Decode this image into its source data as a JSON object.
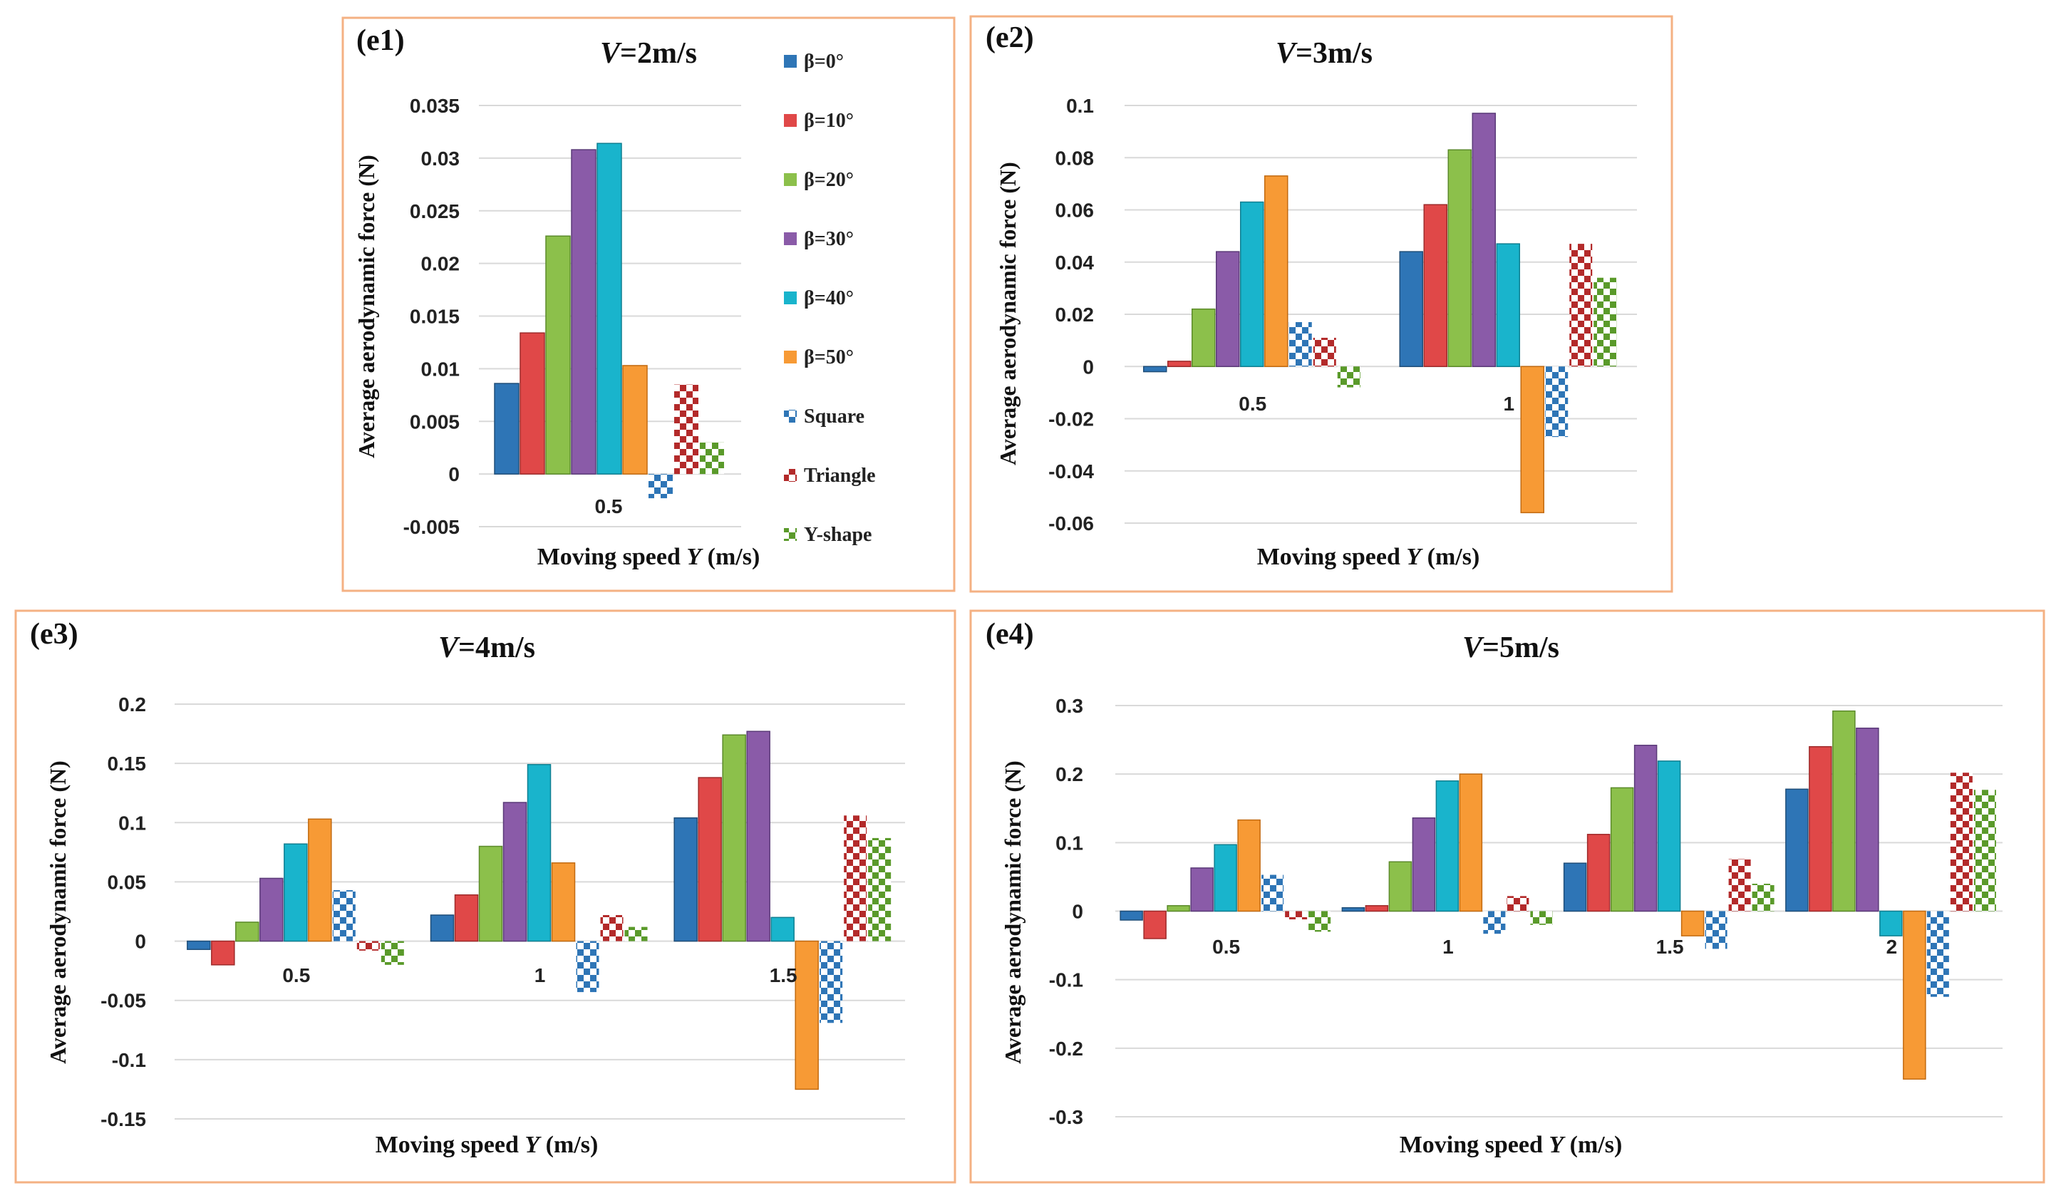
{
  "colors": {
    "b0": "#2e75b6",
    "b10": "#e04848",
    "b20": "#8cc04b",
    "b30": "#8a5ba8",
    "b40": "#19b4cc",
    "b50": "#f79a35",
    "square": "#2e75b6",
    "triangle": "#b32a2a",
    "yshape": "#5a9a2a",
    "grid": "#d9d9d9",
    "frame": "#f4b183"
  },
  "legend": {
    "items": [
      {
        "label": "β=0°",
        "key": "b0",
        "pattern": "solid"
      },
      {
        "label": "β=10°",
        "key": "b10",
        "pattern": "solid"
      },
      {
        "label": "β=20°",
        "key": "b20",
        "pattern": "solid"
      },
      {
        "label": "β=30°",
        "key": "b30",
        "pattern": "solid"
      },
      {
        "label": "β=40°",
        "key": "b40",
        "pattern": "solid"
      },
      {
        "label": "β=50°",
        "key": "b50",
        "pattern": "solid"
      },
      {
        "label": "Square",
        "key": "square",
        "pattern": "check"
      },
      {
        "label": "Triangle",
        "key": "triangle",
        "pattern": "check"
      },
      {
        "label": "Y-shape",
        "key": "yshape",
        "pattern": "check"
      }
    ]
  },
  "chart_data": [
    {
      "type": "bar",
      "panel": "(e1)",
      "title_v": "V",
      "title_rest": "=2m/s",
      "ylabel": "Average aerodynamic force (N)",
      "xlabel": "Moving speed ",
      "xlabel_var": "Y",
      "xlabel_unit": " (m/s)",
      "categories": [
        "0.5"
      ],
      "yticks": [
        "0.035",
        "0.03",
        "0.025",
        "0.02",
        "0.015",
        "0.01",
        "0.005",
        "0",
        "-0.005"
      ],
      "ylim": [
        -0.005,
        0.035
      ],
      "series": [
        {
          "name": "β=0°",
          "values": [
            0.0086
          ]
        },
        {
          "name": "β=10°",
          "values": [
            0.0134
          ]
        },
        {
          "name": "β=20°",
          "values": [
            0.0226
          ]
        },
        {
          "name": "β=30°",
          "values": [
            0.0308
          ]
        },
        {
          "name": "β=40°",
          "values": [
            0.0314
          ]
        },
        {
          "name": "β=50°",
          "values": [
            0.0103
          ]
        },
        {
          "name": "Square",
          "values": [
            -0.0023
          ]
        },
        {
          "name": "Triangle",
          "values": [
            0.0085
          ]
        },
        {
          "name": "Y-shape",
          "values": [
            0.003
          ]
        }
      ]
    },
    {
      "type": "bar",
      "panel": "(e2)",
      "title_v": "V",
      "title_rest": "=3m/s",
      "ylabel": "Average aerodynamic force (N)",
      "xlabel": "Moving speed ",
      "xlabel_var": "Y",
      "xlabel_unit": " (m/s)",
      "categories": [
        "0.5",
        "1"
      ],
      "yticks": [
        "0.1",
        "0.08",
        "0.06",
        "0.04",
        "0.02",
        "0",
        "-0.02",
        "-0.04",
        "-0.06"
      ],
      "ylim": [
        -0.06,
        0.1
      ],
      "series": [
        {
          "name": "β=0°",
          "values": [
            -0.002,
            0.044
          ]
        },
        {
          "name": "β=10°",
          "values": [
            0.002,
            0.062
          ]
        },
        {
          "name": "β=20°",
          "values": [
            0.022,
            0.083
          ]
        },
        {
          "name": "β=30°",
          "values": [
            0.044,
            0.097
          ]
        },
        {
          "name": "β=40°",
          "values": [
            0.063,
            0.047
          ]
        },
        {
          "name": "β=50°",
          "values": [
            0.073,
            -0.056
          ]
        },
        {
          "name": "Square",
          "values": [
            0.017,
            -0.027
          ]
        },
        {
          "name": "Triangle",
          "values": [
            0.011,
            0.047
          ]
        },
        {
          "name": "Y-shape",
          "values": [
            -0.008,
            0.034
          ]
        }
      ]
    },
    {
      "type": "bar",
      "panel": "(e3)",
      "title_v": "V",
      "title_rest": "=4m/s",
      "ylabel": "Average aerodynamic force (N)",
      "xlabel": "Moving speed ",
      "xlabel_var": "Y",
      "xlabel_unit": " (m/s)",
      "categories": [
        "0.5",
        "1",
        "1.5"
      ],
      "yticks": [
        "0.2",
        "0.15",
        "0.1",
        "0.05",
        "0",
        "-0.05",
        "-0.1",
        "-0.15"
      ],
      "ylim": [
        -0.15,
        0.2
      ],
      "series": [
        {
          "name": "β=0°",
          "values": [
            -0.007,
            0.022,
            0.104
          ]
        },
        {
          "name": "β=10°",
          "values": [
            -0.02,
            0.039,
            0.138
          ]
        },
        {
          "name": "β=20°",
          "values": [
            0.016,
            0.08,
            0.174
          ]
        },
        {
          "name": "β=30°",
          "values": [
            0.053,
            0.117,
            0.177
          ]
        },
        {
          "name": "β=40°",
          "values": [
            0.082,
            0.149,
            0.02
          ]
        },
        {
          "name": "β=50°",
          "values": [
            0.103,
            0.066,
            -0.125
          ]
        },
        {
          "name": "Square",
          "values": [
            0.043,
            -0.043,
            -0.069
          ]
        },
        {
          "name": "Triangle",
          "values": [
            -0.008,
            0.022,
            0.106
          ]
        },
        {
          "name": "Y-shape",
          "values": [
            -0.02,
            0.012,
            0.087
          ]
        }
      ]
    },
    {
      "type": "bar",
      "panel": "(e4)",
      "title_v": "V",
      "title_rest": "=5m/s",
      "ylabel": "Average aerodynamic force (N)",
      "xlabel": "Moving speed ",
      "xlabel_var": "Y",
      "xlabel_unit": " (m/s)",
      "categories": [
        "0.5",
        "1",
        "1.5",
        "2"
      ],
      "yticks": [
        "0.3",
        "0.2",
        "0.1",
        "0",
        "-0.1",
        "-0.2",
        "-0.3"
      ],
      "ylim": [
        -0.3,
        0.3
      ],
      "series": [
        {
          "name": "β=0°",
          "values": [
            -0.013,
            0.005,
            0.07,
            0.178
          ]
        },
        {
          "name": "β=10°",
          "values": [
            -0.04,
            0.008,
            0.112,
            0.24
          ]
        },
        {
          "name": "β=20°",
          "values": [
            0.008,
            0.072,
            0.18,
            0.292
          ]
        },
        {
          "name": "β=30°",
          "values": [
            0.063,
            0.136,
            0.242,
            0.267
          ]
        },
        {
          "name": "β=40°",
          "values": [
            0.097,
            0.19,
            0.219,
            -0.036
          ]
        },
        {
          "name": "β=50°",
          "values": [
            0.133,
            0.2,
            -0.036,
            -0.245
          ]
        },
        {
          "name": "Square",
          "values": [
            0.053,
            -0.033,
            -0.055,
            -0.125
          ]
        },
        {
          "name": "Triangle",
          "values": [
            -0.012,
            0.022,
            0.076,
            0.202
          ]
        },
        {
          "name": "Y-shape",
          "values": [
            -0.03,
            -0.02,
            0.04,
            0.177
          ]
        }
      ]
    }
  ]
}
